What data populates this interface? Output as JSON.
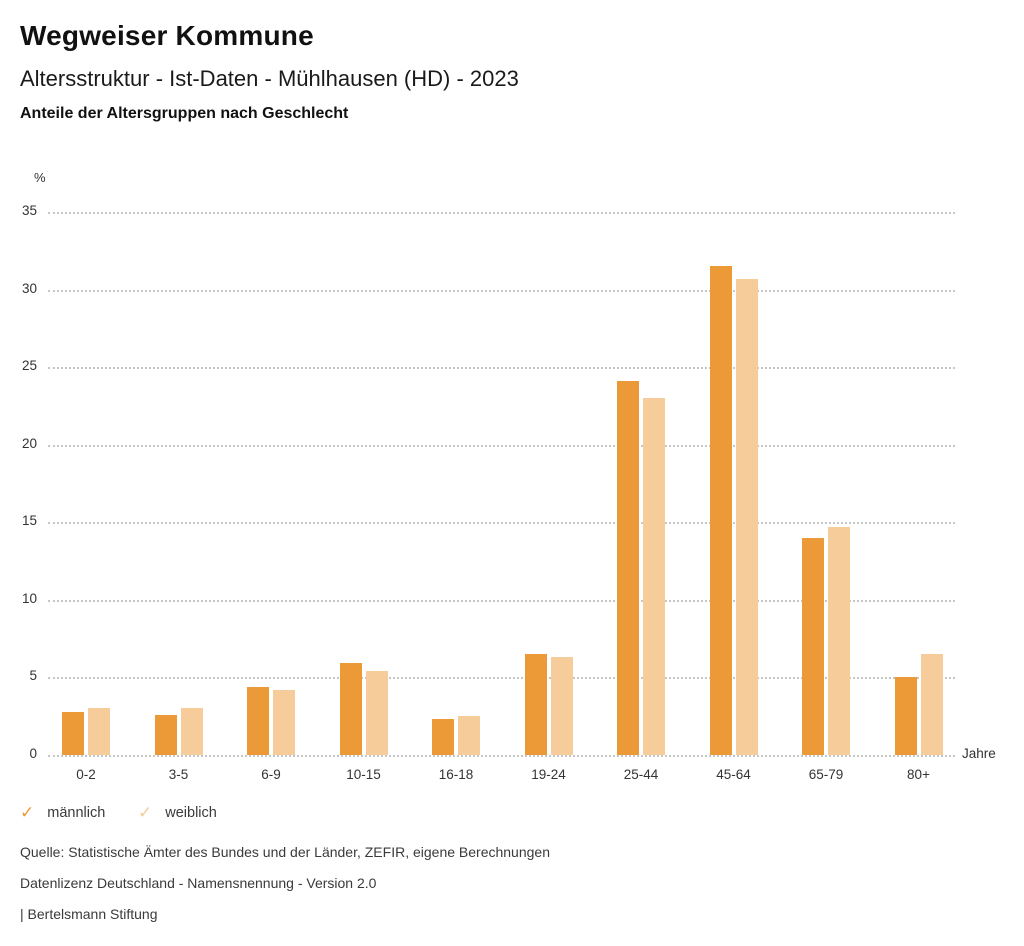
{
  "header": {
    "title": "Wegweiser Kommune",
    "subtitle": "Altersstruktur - Ist-Daten - Mühlhausen (HD) - 2023",
    "chart_heading": "Anteile der Altersgruppen nach Geschlecht"
  },
  "chart_data": {
    "type": "bar",
    "title": "Anteile der Altersgruppen nach Geschlecht",
    "unit_label": "%",
    "xlabel": "Jahre",
    "ylabel": "%",
    "categories": [
      "0-2",
      "3-5",
      "6-9",
      "10-15",
      "16-18",
      "19-24",
      "25-44",
      "45-64",
      "65-79",
      "80+"
    ],
    "series": [
      {
        "name": "männlich",
        "color": "#EC9A38",
        "values": [
          2.8,
          2.6,
          4.4,
          5.9,
          2.3,
          6.5,
          24.1,
          31.5,
          14.0,
          5.0
        ]
      },
      {
        "name": "weiblich",
        "color": "#F6CC9B",
        "values": [
          3.0,
          3.0,
          4.2,
          5.4,
          2.5,
          6.3,
          23.0,
          30.7,
          14.7,
          6.5
        ]
      }
    ],
    "ylim": [
      0,
      35
    ],
    "yticks": [
      0,
      5,
      10,
      15,
      20,
      25,
      30,
      35
    ],
    "grid": "horizontal-dotted",
    "legend_position": "bottom-left"
  },
  "legend": {
    "items": [
      {
        "label": "männlich",
        "color": "#EC9A38",
        "icon": "check-icon"
      },
      {
        "label": "weiblich",
        "color": "#F6CC9B",
        "icon": "check-icon"
      }
    ]
  },
  "footer": {
    "source": "Quelle: Statistische Ämter des Bundes und der Länder, ZEFIR, eigene Berechnungen",
    "license": "Datenlizenz Deutschland - Namensnennung - Version 2.0",
    "attribution": "| Bertelsmann Stiftung"
  }
}
